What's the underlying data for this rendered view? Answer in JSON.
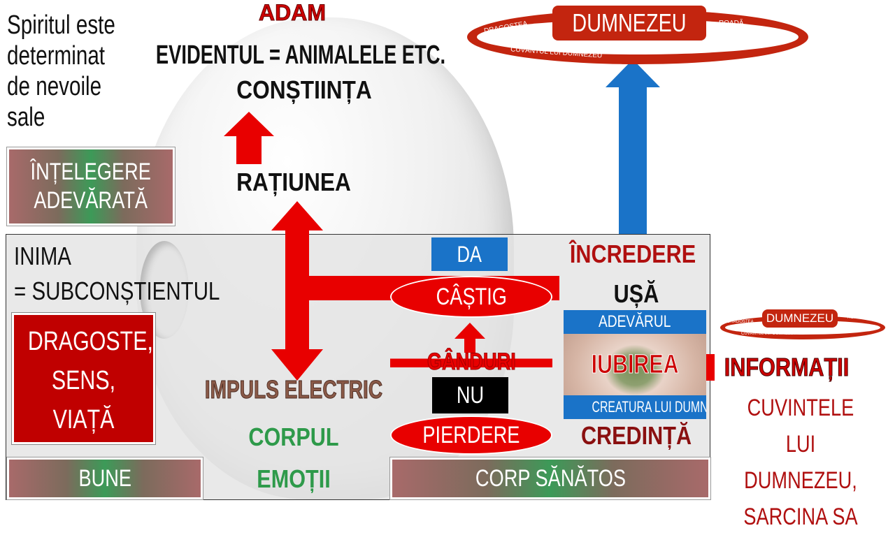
{
  "left_note": [
    "Spiritul este",
    "determinat",
    "de nevoile",
    "sale"
  ],
  "title": "ADAM",
  "evident": "EVIDENTUL = ANIMALELE ETC.",
  "constiinta": "CONȘTIINȚA",
  "ratiunea": "RAȚIUNEA",
  "intelegere": [
    "ÎNȚELEGERE",
    "ADEVĂRATĂ"
  ],
  "inima": [
    "INIMA",
    "= SUBCONȘTIENTUL"
  ],
  "dragoste": [
    "DRAGOSTE,",
    "SENS,",
    "VIAȚĂ"
  ],
  "da": "DA",
  "castig": "CÂȘTIG",
  "ganduri": "GÂNDURI",
  "nu": "NU",
  "pierdere": "PIERDERE",
  "impuls": "IMPULS ELECTRIC",
  "corpul": "CORPUL",
  "emotii": "EMOȚII",
  "bune": "BUNE",
  "corp_sanatos": "CORP SĂNĂTOS",
  "incredere": "ÎNCREDERE",
  "usa": "UȘĂ",
  "eye_box": {
    "top": "ADEVĂRUL",
    "middle": "IUBIREA",
    "bottom": "CREATURA LUI DUMNEZEU"
  },
  "credinta": "CREDINȚĂ",
  "informatii": "INFORMAȚII",
  "cuvintele": [
    "CUVINTELE LUI",
    "DUMNEZEU,",
    "SARCINA SA"
  ],
  "god_ring": {
    "center": "DUMNEZEU",
    "left": "DRAGOSTEA",
    "right": "ROADĂ",
    "bottom": "CUVÂNTUL LUI DUMNEZEU"
  },
  "colors": {
    "red": "#e80000",
    "dark_red": "#b01010",
    "ring_red": "#c3250f",
    "blue": "#1a73c8",
    "green": "#2e9a4a",
    "brown": "#7a5040"
  }
}
